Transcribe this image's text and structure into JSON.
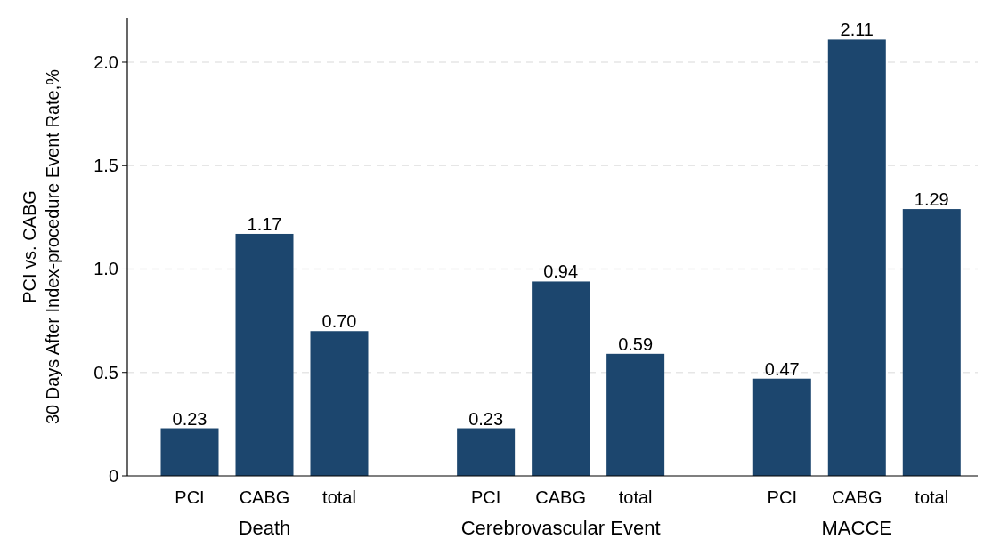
{
  "chart_data": {
    "type": "bar",
    "ylabel": "PCI vs. CABG\n30 Days After Index-procedure Event Rate,%",
    "categories": [
      "PCI",
      "CABG",
      "total",
      "PCI",
      "CABG",
      "total",
      "PCI",
      "CABG",
      "total"
    ],
    "series": [
      {
        "color": "#1c466e",
        "values": [
          0.23,
          1.17,
          0.7,
          0.23,
          0.94,
          0.59,
          0.47,
          2.11,
          1.29
        ],
        "value_labels": [
          "0.23",
          "1.17",
          "0.70",
          "0.23",
          "0.94",
          "0.59",
          "0.47",
          "2.11",
          "1.29"
        ]
      }
    ],
    "annotations": [
      "Death",
      "Cerebrovascular Event",
      "MACCE"
    ],
    "ylim": [
      0,
      2.215
    ],
    "yticks": [
      0,
      {
        "value": 0.5,
        "label": "0.5"
      },
      {
        "value": 1,
        "label": "1.0"
      },
      {
        "value": 1.5,
        "label": "1.5"
      },
      {
        "value": 2,
        "label": "2.0"
      }
    ],
    "grid": "y"
  }
}
